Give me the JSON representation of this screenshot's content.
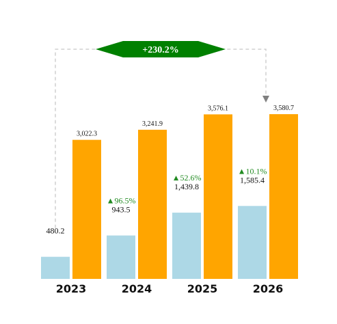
{
  "chart_data": {
    "type": "bar",
    "categories": [
      "2023",
      "2024",
      "2025",
      "2026"
    ],
    "series": [
      {
        "values": [
          480.2,
          943.5,
          1439.8,
          1585.4
        ],
        "labels": [
          "480.2",
          "943.5",
          "1,439.8",
          "1,585.4"
        ],
        "color": "#add8e6"
      },
      {
        "values": [
          3022.3,
          3241.9,
          3576.1,
          3580.7
        ],
        "labels": [
          "3,022.3",
          "3,241.9",
          "3,576.1",
          "3,580.7"
        ],
        "color": "#ffa500"
      }
    ],
    "growth_labels": [
      "",
      "▲96.5%",
      "▲52.6%",
      "▲10.1%"
    ],
    "total_change": {
      "label": "+230.2%",
      "from": "2023",
      "to": "2026",
      "color": "#008000"
    },
    "connector_color": "#c8c8c8",
    "arrow_color": "#808080",
    "growth_color": "#228b22"
  }
}
